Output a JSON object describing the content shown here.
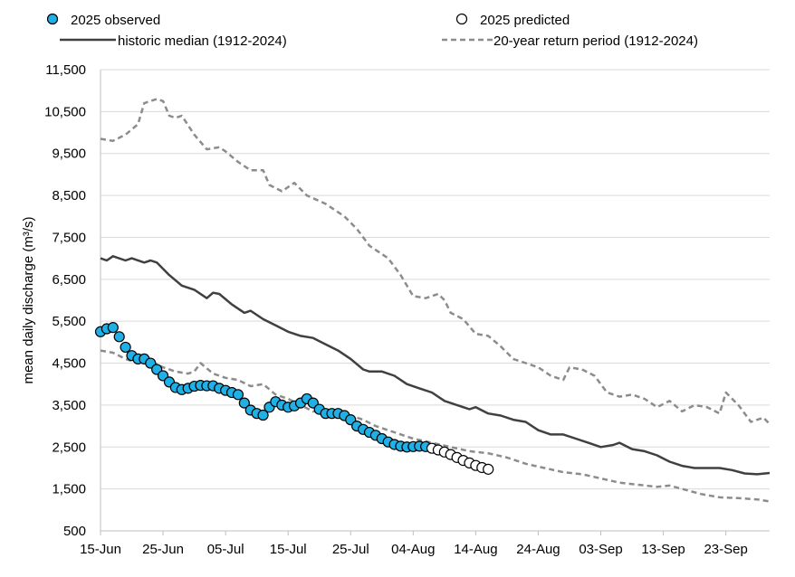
{
  "chart_data": {
    "type": "line",
    "title": "",
    "xlabel": "",
    "ylabel": "mean daily discharge (m³/s)",
    "ylim": [
      500,
      11500
    ],
    "xlim": [
      "15-Jun",
      "30-Sep"
    ],
    "grid": "horizontal",
    "legend_position": "top",
    "y_ticks": [
      "500",
      "1,500",
      "2,500",
      "3,500",
      "4,500",
      "5,500",
      "6,500",
      "7,500",
      "8,500",
      "9,500",
      "10,500",
      "11,500"
    ],
    "x_ticks": [
      "15-Jun",
      "25-Jun",
      "05-Jul",
      "15-Jul",
      "25-Jul",
      "04-Aug",
      "14-Aug",
      "24-Aug",
      "03-Sep",
      "13-Sep",
      "23-Sep"
    ],
    "colors": {
      "observed": "#1fb0e6",
      "median": "#404040",
      "return": "#8c8c8c",
      "grid": "#d9d9d9"
    },
    "series": [
      {
        "name": "2025 observed",
        "style": "marker-filled",
        "points": [
          [
            "15-Jun",
            5250
          ],
          [
            "16-Jun",
            5320
          ],
          [
            "17-Jun",
            5350
          ],
          [
            "18-Jun",
            5130
          ],
          [
            "19-Jun",
            4880
          ],
          [
            "20-Jun",
            4680
          ],
          [
            "21-Jun",
            4600
          ],
          [
            "22-Jun",
            4600
          ],
          [
            "23-Jun",
            4500
          ],
          [
            "24-Jun",
            4350
          ],
          [
            "25-Jun",
            4200
          ],
          [
            "26-Jun",
            4050
          ],
          [
            "27-Jun",
            3920
          ],
          [
            "28-Jun",
            3870
          ],
          [
            "29-Jun",
            3900
          ],
          [
            "30-Jun",
            3950
          ],
          [
            "01-Jul",
            3970
          ],
          [
            "02-Jul",
            3960
          ],
          [
            "03-Jul",
            3960
          ],
          [
            "04-Jul",
            3900
          ],
          [
            "05-Jul",
            3850
          ],
          [
            "06-Jul",
            3800
          ],
          [
            "07-Jul",
            3750
          ],
          [
            "08-Jul",
            3550
          ],
          [
            "09-Jul",
            3380
          ],
          [
            "10-Jul",
            3300
          ],
          [
            "11-Jul",
            3260
          ],
          [
            "12-Jul",
            3450
          ],
          [
            "13-Jul",
            3580
          ],
          [
            "14-Jul",
            3500
          ],
          [
            "15-Jul",
            3450
          ],
          [
            "16-Jul",
            3480
          ],
          [
            "17-Jul",
            3550
          ],
          [
            "18-Jul",
            3650
          ],
          [
            "19-Jul",
            3550
          ],
          [
            "20-Jul",
            3400
          ],
          [
            "21-Jul",
            3300
          ],
          [
            "22-Jul",
            3300
          ],
          [
            "23-Jul",
            3300
          ],
          [
            "24-Jul",
            3250
          ],
          [
            "25-Jul",
            3150
          ],
          [
            "26-Jul",
            3000
          ],
          [
            "27-Jul",
            2920
          ],
          [
            "28-Jul",
            2850
          ],
          [
            "29-Jul",
            2780
          ],
          [
            "30-Jul",
            2700
          ],
          [
            "31-Jul",
            2620
          ],
          [
            "01-Aug",
            2560
          ],
          [
            "02-Aug",
            2520
          ],
          [
            "03-Aug",
            2500
          ],
          [
            "04-Aug",
            2510
          ],
          [
            "05-Aug",
            2520
          ],
          [
            "06-Aug",
            2510
          ]
        ]
      },
      {
        "name": "2025 predicted",
        "style": "marker-open",
        "points": [
          [
            "07-Aug",
            2470
          ],
          [
            "08-Aug",
            2430
          ],
          [
            "09-Aug",
            2380
          ],
          [
            "10-Aug",
            2320
          ],
          [
            "11-Aug",
            2250
          ],
          [
            "12-Aug",
            2180
          ],
          [
            "13-Aug",
            2120
          ],
          [
            "14-Aug",
            2060
          ],
          [
            "15-Aug",
            2010
          ],
          [
            "16-Aug",
            1970
          ]
        ]
      },
      {
        "name": "historic median (1912-2024)",
        "style": "solid",
        "points": [
          [
            "15-Jun",
            7000
          ],
          [
            "16-Jun",
            6950
          ],
          [
            "17-Jun",
            7050
          ],
          [
            "19-Jun",
            6950
          ],
          [
            "20-Jun",
            7000
          ],
          [
            "22-Jun",
            6900
          ],
          [
            "23-Jun",
            6950
          ],
          [
            "24-Jun",
            6900
          ],
          [
            "26-Jun",
            6600
          ],
          [
            "28-Jun",
            6350
          ],
          [
            "30-Jun",
            6250
          ],
          [
            "02-Jul",
            6050
          ],
          [
            "03-Jul",
            6180
          ],
          [
            "04-Jul",
            6150
          ],
          [
            "06-Jul",
            5900
          ],
          [
            "08-Jul",
            5700
          ],
          [
            "09-Jul",
            5750
          ],
          [
            "11-Jul",
            5550
          ],
          [
            "13-Jul",
            5400
          ],
          [
            "15-Jul",
            5250
          ],
          [
            "17-Jul",
            5150
          ],
          [
            "19-Jul",
            5100
          ],
          [
            "21-Jul",
            4950
          ],
          [
            "23-Jul",
            4800
          ],
          [
            "25-Jul",
            4600
          ],
          [
            "27-Jul",
            4350
          ],
          [
            "28-Jul",
            4300
          ],
          [
            "30-Jul",
            4300
          ],
          [
            "01-Aug",
            4200
          ],
          [
            "03-Aug",
            4000
          ],
          [
            "05-Aug",
            3900
          ],
          [
            "07-Aug",
            3800
          ],
          [
            "09-Aug",
            3600
          ],
          [
            "11-Aug",
            3500
          ],
          [
            "13-Aug",
            3400
          ],
          [
            "14-Aug",
            3450
          ],
          [
            "16-Aug",
            3300
          ],
          [
            "18-Aug",
            3250
          ],
          [
            "20-Aug",
            3150
          ],
          [
            "22-Aug",
            3100
          ],
          [
            "24-Aug",
            2900
          ],
          [
            "26-Aug",
            2800
          ],
          [
            "28-Aug",
            2800
          ],
          [
            "30-Aug",
            2700
          ],
          [
            "01-Sep",
            2600
          ],
          [
            "03-Sep",
            2500
          ],
          [
            "05-Sep",
            2550
          ],
          [
            "06-Sep",
            2600
          ],
          [
            "08-Sep",
            2450
          ],
          [
            "10-Sep",
            2400
          ],
          [
            "12-Sep",
            2300
          ],
          [
            "14-Sep",
            2150
          ],
          [
            "16-Sep",
            2050
          ],
          [
            "18-Sep",
            2000
          ],
          [
            "20-Sep",
            2000
          ],
          [
            "22-Sep",
            2000
          ],
          [
            "24-Sep",
            1950
          ],
          [
            "26-Sep",
            1870
          ],
          [
            "28-Sep",
            1850
          ],
          [
            "30-Sep",
            1880
          ]
        ]
      },
      {
        "name": "20-year return period (1912-2024)",
        "style": "dashed",
        "points": [
          [
            "15-Jun",
            9850
          ],
          [
            "17-Jun",
            9800
          ],
          [
            "19-Jun",
            9950
          ],
          [
            "21-Jun",
            10200
          ],
          [
            "22-Jun",
            10700
          ],
          [
            "24-Jun",
            10800
          ],
          [
            "25-Jun",
            10750
          ],
          [
            "26-Jun",
            10400
          ],
          [
            "27-Jun",
            10350
          ],
          [
            "28-Jun",
            10400
          ],
          [
            "30-Jun",
            9950
          ],
          [
            "02-Jul",
            9600
          ],
          [
            "04-Jul",
            9650
          ],
          [
            "05-Jul",
            9550
          ],
          [
            "07-Jul",
            9300
          ],
          [
            "09-Jul",
            9100
          ],
          [
            "11-Jul",
            9100
          ],
          [
            "12-Jul",
            8750
          ],
          [
            "14-Jul",
            8600
          ],
          [
            "16-Jul",
            8800
          ],
          [
            "18-Jul",
            8500
          ],
          [
            "21-Jul",
            8300
          ],
          [
            "24-Jul",
            8000
          ],
          [
            "26-Jul",
            7700
          ],
          [
            "28-Jul",
            7300
          ],
          [
            "31-Jul",
            7000
          ],
          [
            "02-Aug",
            6600
          ],
          [
            "04-Aug",
            6100
          ],
          [
            "06-Aug",
            6050
          ],
          [
            "08-Aug",
            6150
          ],
          [
            "09-Aug",
            6000
          ],
          [
            "10-Aug",
            5700
          ],
          [
            "12-Aug",
            5550
          ],
          [
            "14-Aug",
            5200
          ],
          [
            "16-Aug",
            5150
          ],
          [
            "18-Aug",
            4900
          ],
          [
            "20-Aug",
            4600
          ],
          [
            "22-Aug",
            4500
          ],
          [
            "24-Aug",
            4400
          ],
          [
            "26-Aug",
            4200
          ],
          [
            "28-Aug",
            4100
          ],
          [
            "29-Aug",
            4400
          ],
          [
            "31-Aug",
            4350
          ],
          [
            "02-Sep",
            4200
          ],
          [
            "04-Sep",
            3800
          ],
          [
            "06-Sep",
            3700
          ],
          [
            "08-Sep",
            3750
          ],
          [
            "10-Sep",
            3650
          ],
          [
            "12-Sep",
            3450
          ],
          [
            "14-Sep",
            3600
          ],
          [
            "16-Sep",
            3350
          ],
          [
            "18-Sep",
            3500
          ],
          [
            "20-Sep",
            3450
          ],
          [
            "22-Sep",
            3300
          ],
          [
            "23-Sep",
            3800
          ],
          [
            "25-Sep",
            3500
          ],
          [
            "27-Sep",
            3100
          ],
          [
            "29-Sep",
            3200
          ],
          [
            "30-Sep",
            3050
          ]
        ]
      },
      {
        "name": "",
        "style": "dashed",
        "points": [
          [
            "15-Jun",
            4800
          ],
          [
            "17-Jun",
            4750
          ],
          [
            "19-Jun",
            4600
          ],
          [
            "21-Jun",
            4500
          ],
          [
            "23-Jun",
            4550
          ],
          [
            "25-Jun",
            4400
          ],
          [
            "27-Jun",
            4300
          ],
          [
            "29-Jun",
            4250
          ],
          [
            "30-Jun",
            4300
          ],
          [
            "01-Jul",
            4500
          ],
          [
            "03-Jul",
            4250
          ],
          [
            "05-Jul",
            4150
          ],
          [
            "07-Jul",
            4100
          ],
          [
            "09-Jul",
            3950
          ],
          [
            "11-Jul",
            4000
          ],
          [
            "13-Jul",
            3750
          ],
          [
            "15-Jul",
            3650
          ],
          [
            "17-Jul",
            3500
          ],
          [
            "19-Jul",
            3350
          ],
          [
            "21-Jul",
            3350
          ],
          [
            "23-Jul",
            3300
          ],
          [
            "25-Jul",
            3250
          ],
          [
            "27-Jul",
            3150
          ],
          [
            "29-Jul",
            3000
          ],
          [
            "01-Aug",
            2850
          ],
          [
            "04-Aug",
            2700
          ],
          [
            "07-Aug",
            2600
          ],
          [
            "10-Aug",
            2500
          ],
          [
            "13-Aug",
            2400
          ],
          [
            "16-Aug",
            2350
          ],
          [
            "19-Aug",
            2250
          ],
          [
            "22-Aug",
            2100
          ],
          [
            "25-Aug",
            2000
          ],
          [
            "28-Aug",
            1900
          ],
          [
            "31-Aug",
            1850
          ],
          [
            "03-Sep",
            1750
          ],
          [
            "06-Sep",
            1650
          ],
          [
            "09-Sep",
            1600
          ],
          [
            "12-Sep",
            1550
          ],
          [
            "14-Sep",
            1580
          ],
          [
            "16-Sep",
            1500
          ],
          [
            "19-Sep",
            1380
          ],
          [
            "22-Sep",
            1300
          ],
          [
            "25-Sep",
            1280
          ],
          [
            "28-Sep",
            1250
          ],
          [
            "30-Sep",
            1200
          ]
        ]
      }
    ],
    "legend": [
      "2025 observed",
      "2025 predicted",
      "historic median (1912-2024)",
      "20-year return period (1912-2024)"
    ]
  }
}
